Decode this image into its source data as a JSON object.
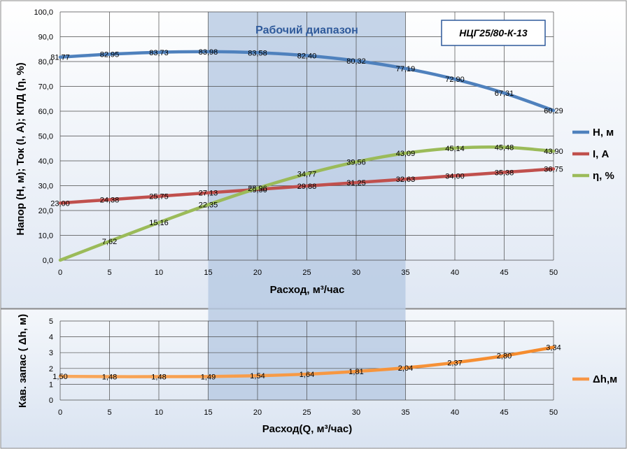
{
  "chart_data": [
    {
      "type": "line",
      "title": "",
      "band_label": "Рабочий диапазон",
      "model_label": "НЦГ25/80-К-13",
      "xlabel": "Расход, м³/час",
      "ylabel": "Напор (Н, м); Ток (I, А); КПД (η, %)",
      "xlim": [
        0,
        50
      ],
      "ylim": [
        0,
        100
      ],
      "x_ticks": [
        "0",
        "5",
        "10",
        "15",
        "20",
        "25",
        "30",
        "35",
        "40",
        "45",
        "50"
      ],
      "y_ticks": [
        "0,0",
        "10,0",
        "20,0",
        "30,0",
        "40,0",
        "50,0",
        "60,0",
        "70,0",
        "80,0",
        "90,0",
        "100,0"
      ],
      "working_range": [
        15,
        35
      ],
      "grid": true,
      "legend_position": "right",
      "x": [
        0,
        5,
        10,
        15,
        20,
        25,
        30,
        35,
        40,
        45,
        50
      ],
      "series": [
        {
          "name": "Н, м",
          "color": "#4f81bd",
          "values": [
            81.77,
            82.95,
            83.73,
            83.98,
            83.58,
            82.4,
            80.32,
            77.19,
            72.9,
            67.31,
            60.29
          ],
          "labels": [
            "81,77",
            "82,95",
            "83,73",
            "83,98",
            "83,58",
            "82,40",
            "80,32",
            "77,19",
            "72,90",
            "67,31",
            "60,29"
          ]
        },
        {
          "name": "I, А",
          "color": "#c0504d",
          "values": [
            23.0,
            24.38,
            25.75,
            27.13,
            28.5,
            29.88,
            31.25,
            32.63,
            34.0,
            35.38,
            36.75
          ],
          "labels": [
            "23,00",
            "24,38",
            "25,75",
            "27,13",
            "28,50",
            "29,88",
            "31,25",
            "32,63",
            "34,00",
            "35,38",
            "36,75"
          ]
        },
        {
          "name": "η, %",
          "color": "#9bbb59",
          "values": [
            0.0,
            7.62,
            15.16,
            22.35,
            28.96,
            34.77,
            39.56,
            43.09,
            45.14,
            45.48,
            43.9
          ],
          "labels": [
            "",
            "7,62",
            "15,16",
            "22,35",
            "28,96",
            "34,77",
            "39,56",
            "43,09",
            "45,14",
            "45,48",
            "43,90"
          ]
        }
      ]
    },
    {
      "type": "line",
      "title": "",
      "xlabel": "Расход(Q, м³/час)",
      "ylabel": "Кав. запас ( Δh, м)",
      "xlim": [
        0,
        50
      ],
      "ylim": [
        0,
        5
      ],
      "x_ticks": [
        "0",
        "5",
        "10",
        "15",
        "20",
        "25",
        "30",
        "35",
        "40",
        "45",
        "50"
      ],
      "y_ticks": [
        "0",
        "1",
        "2",
        "3",
        "4",
        "5"
      ],
      "working_range": [
        15,
        35
      ],
      "grid": true,
      "legend_position": "right",
      "x": [
        0,
        5,
        10,
        15,
        20,
        25,
        30,
        35,
        40,
        45,
        50
      ],
      "series": [
        {
          "name": "Δh,м",
          "color": "#f79646",
          "values": [
            1.5,
            1.48,
            1.48,
            1.49,
            1.54,
            1.64,
            1.81,
            2.04,
            2.37,
            2.8,
            3.34
          ],
          "labels": [
            "1,50",
            "1,48",
            "1,48",
            "1,49",
            "1,54",
            "1,64",
            "1,81",
            "2,04",
            "2,37",
            "2,80",
            "3,34"
          ]
        }
      ]
    }
  ]
}
